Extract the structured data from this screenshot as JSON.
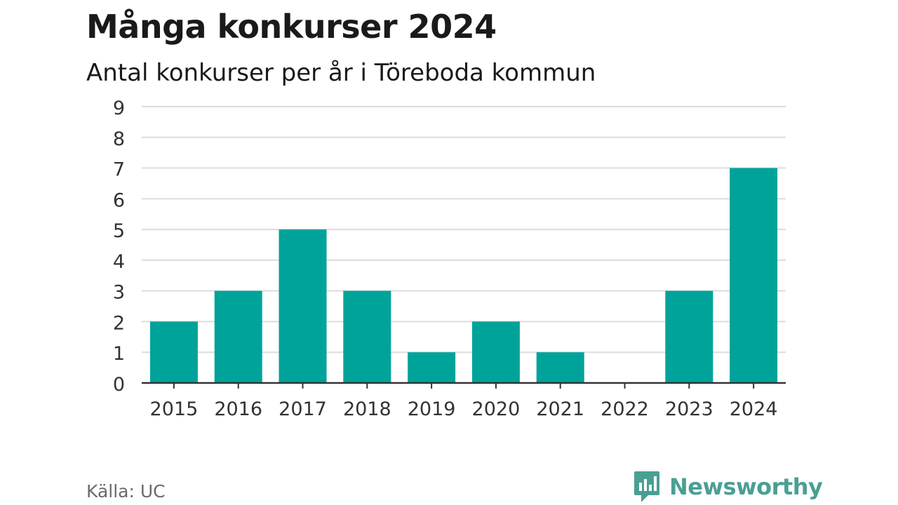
{
  "header": {
    "title": "Många konkurser 2024",
    "subtitle": "Antal konkurser per år i Töreboda kommun"
  },
  "footer": {
    "source": "Källa: UC",
    "brand": "Newsworthy"
  },
  "colors": {
    "bar": "#00a39a",
    "grid": "#dcdcdc",
    "axis": "#333333",
    "brand": "#4a9f93"
  },
  "icons": {
    "brand_logo": "newsworthy-logo-icon"
  },
  "chart_data": {
    "type": "bar",
    "categories": [
      "2015",
      "2016",
      "2017",
      "2018",
      "2019",
      "2020",
      "2021",
      "2022",
      "2023",
      "2024"
    ],
    "values": [
      2,
      3,
      5,
      3,
      1,
      2,
      1,
      0,
      3,
      7
    ],
    "ylim": [
      0,
      9
    ],
    "yticks": [
      0,
      1,
      2,
      3,
      4,
      5,
      6,
      7,
      8,
      9
    ],
    "grid": true,
    "legend": "none",
    "xlabel": "",
    "ylabel": ""
  }
}
